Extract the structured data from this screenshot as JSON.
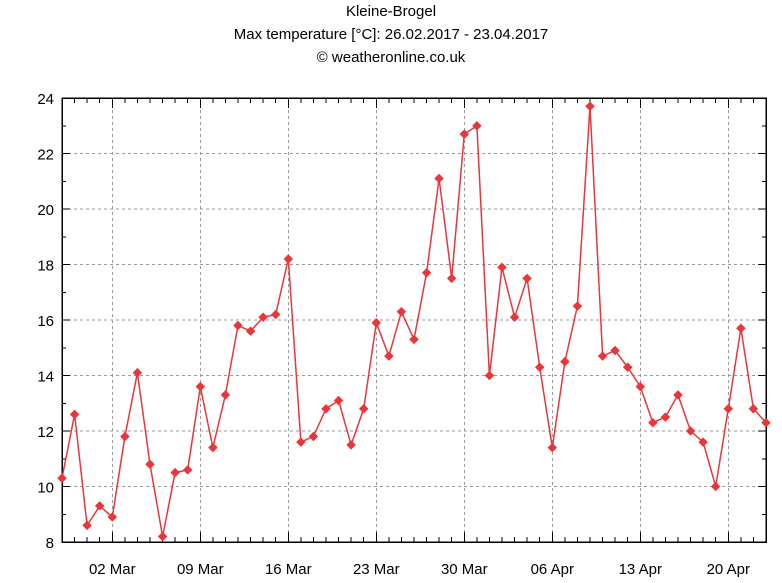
{
  "header": {
    "station": "Kleine-Brogel",
    "subtitle": "Max temperature [°C]: 26.02.2017 - 23.04.2017",
    "credit": "© weatheronline.co.uk"
  },
  "colors": {
    "series": "#e8363a",
    "grid": "#999999",
    "axis": "#000000"
  },
  "chart_data": {
    "type": "line",
    "title": "Kleine-Brogel",
    "subtitle": "Max temperature [°C]: 26.02.2017 - 23.04.2017",
    "xlabel": "",
    "ylabel": "",
    "x_range": [
      "2017-02-26",
      "2017-04-23"
    ],
    "ylim": [
      8,
      24
    ],
    "yticks": [
      8,
      10,
      12,
      14,
      16,
      18,
      20,
      22,
      24
    ],
    "xticks": [
      {
        "date": "2017-03-02",
        "label": "02 Mar"
      },
      {
        "date": "2017-03-09",
        "label": "09 Mar"
      },
      {
        "date": "2017-03-16",
        "label": "16 Mar"
      },
      {
        "date": "2017-03-23",
        "label": "23 Mar"
      },
      {
        "date": "2017-03-30",
        "label": "30 Mar"
      },
      {
        "date": "2017-04-06",
        "label": "06 Apr"
      },
      {
        "date": "2017-04-13",
        "label": "13 Apr"
      },
      {
        "date": "2017-04-20",
        "label": "20 Apr"
      }
    ],
    "grid": true,
    "marker": "diamond",
    "series": [
      {
        "x": [
          "2017-02-26",
          "2017-02-27",
          "2017-02-28",
          "2017-03-01",
          "2017-03-02",
          "2017-03-03",
          "2017-03-04",
          "2017-03-05",
          "2017-03-06",
          "2017-03-07",
          "2017-03-08",
          "2017-03-09",
          "2017-03-10",
          "2017-03-11",
          "2017-03-12",
          "2017-03-13",
          "2017-03-14",
          "2017-03-15",
          "2017-03-16",
          "2017-03-17",
          "2017-03-18",
          "2017-03-19",
          "2017-03-20",
          "2017-03-21",
          "2017-03-22",
          "2017-03-23",
          "2017-03-24",
          "2017-03-25",
          "2017-03-26",
          "2017-03-27",
          "2017-03-28",
          "2017-03-29",
          "2017-03-30",
          "2017-03-31",
          "2017-04-01",
          "2017-04-02",
          "2017-04-03",
          "2017-04-04",
          "2017-04-05",
          "2017-04-06",
          "2017-04-07",
          "2017-04-08",
          "2017-04-09",
          "2017-04-10",
          "2017-04-11",
          "2017-04-12",
          "2017-04-13",
          "2017-04-14",
          "2017-04-15",
          "2017-04-16",
          "2017-04-17",
          "2017-04-18",
          "2017-04-19",
          "2017-04-20",
          "2017-04-21",
          "2017-04-22",
          "2017-04-23"
        ],
        "values": [
          10.3,
          12.6,
          8.6,
          9.3,
          8.9,
          11.8,
          14.1,
          10.8,
          8.2,
          10.5,
          10.6,
          13.6,
          11.4,
          13.3,
          15.8,
          15.6,
          16.1,
          16.2,
          18.2,
          11.6,
          11.8,
          12.8,
          13.1,
          11.5,
          12.8,
          15.9,
          14.7,
          16.3,
          15.3,
          17.7,
          21.1,
          17.5,
          22.7,
          23.0,
          14.0,
          17.9,
          16.1,
          17.5,
          14.3,
          11.4,
          14.5,
          16.5,
          23.7,
          14.7,
          14.9,
          14.3,
          13.6,
          12.3,
          12.5,
          13.3,
          12.0,
          11.6,
          10.0,
          12.8,
          15.7,
          12.8,
          12.3
        ]
      }
    ]
  }
}
